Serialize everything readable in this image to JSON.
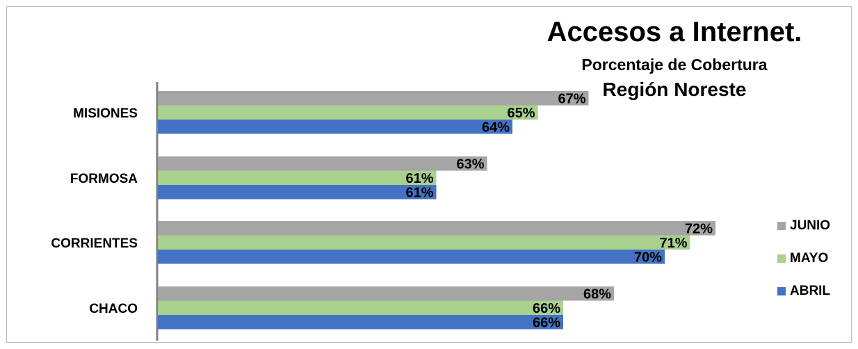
{
  "chart_data": {
    "type": "bar",
    "orientation": "horizontal",
    "title": "Accesos a Internet.",
    "subtitle": "Porcentaje de Cobertura",
    "subtitle2": "Región Noreste",
    "categories": [
      "MISIONES",
      "FORMOSA",
      "CORRIENTES",
      "CHACO"
    ],
    "series": [
      {
        "name": "JUNIO",
        "color": "#A5A5A5",
        "values": [
          67,
          63,
          72,
          68
        ],
        "labels": [
          "67%",
          "63%",
          "72%",
          "68%"
        ]
      },
      {
        "name": "MAYO",
        "color": "#A9D18E",
        "values": [
          65,
          61,
          71,
          66
        ],
        "labels": [
          "65%",
          "61%",
          "71%",
          "66%"
        ]
      },
      {
        "name": "ABRIL",
        "color": "#4472C4",
        "values": [
          64,
          61,
          70,
          66
        ],
        "labels": [
          "64%",
          "61%",
          "70%",
          "66%"
        ]
      }
    ],
    "xlim": [
      50,
      73
    ],
    "grid": false,
    "legend_position": "right"
  }
}
